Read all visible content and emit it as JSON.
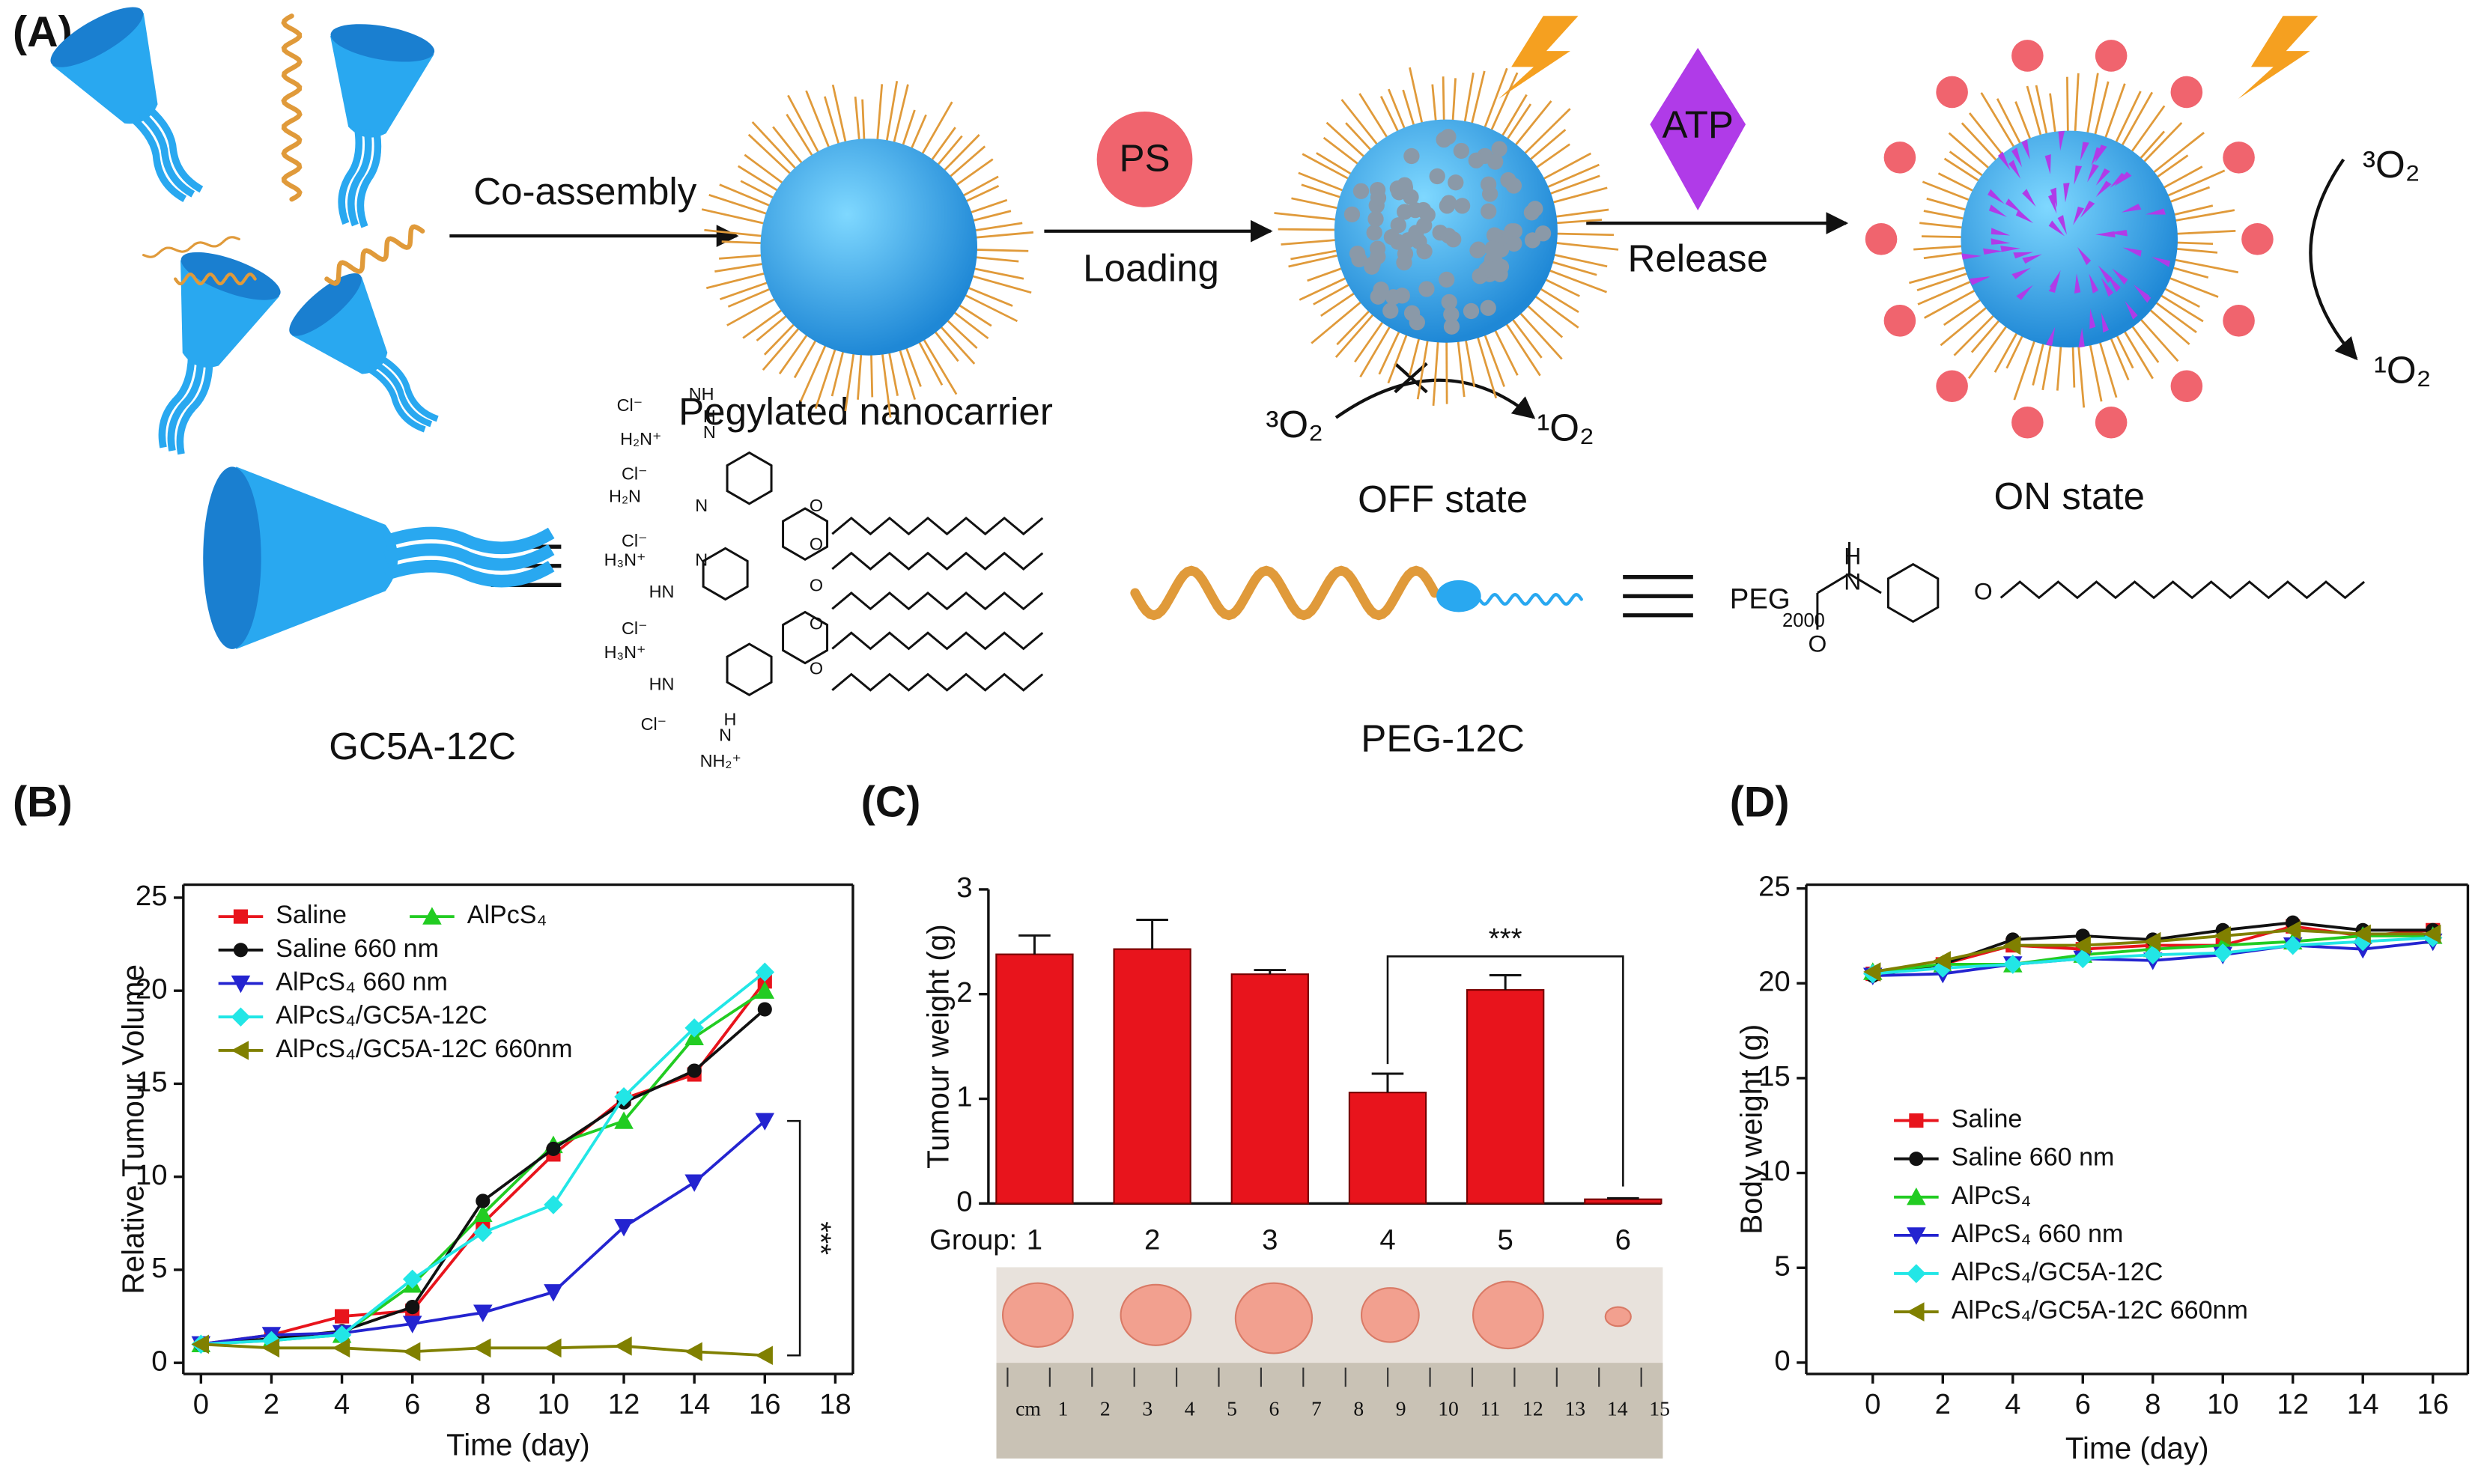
{
  "panel_labels": [
    "(A)",
    "(B)",
    "(C)",
    "(D)"
  ],
  "diagram": {
    "co_assembly": "Co-assembly",
    "ps": "PS",
    "loading": "Loading",
    "atp": "ATP",
    "release": "Release",
    "nanocarrier": "Pegylated nanocarrier",
    "off_triplet": "³O₂",
    "off_singlet": "¹O₂",
    "off_state": "OFF state",
    "on_triplet": "³O₂",
    "on_singlet": "¹O₂",
    "on_state": "ON state",
    "gc5a_label": "GC5A-12C",
    "peg_label": "PEG-12C",
    "gc5a_structure": [
      "Cl⁻",
      "NH",
      "H₂N⁺",
      "N",
      "H",
      "Cl⁻",
      "H₂N",
      "N",
      "Cl⁻",
      "H₃N⁺",
      "N",
      "HN",
      "Cl⁻",
      "H₃N⁺",
      "HN",
      "Cl⁻",
      "NH₂⁺",
      "N",
      "H",
      "O",
      "O",
      "O",
      "O",
      "O"
    ],
    "peg_structure": [
      "PEG",
      "2000",
      "H",
      "N",
      "O",
      "O"
    ]
  },
  "photo": {
    "ruler_labels": [
      "cm",
      "1",
      "2",
      "3",
      "4",
      "5",
      "6",
      "7",
      "8",
      "9",
      "10",
      "11",
      "12",
      "13",
      "14",
      "15"
    ]
  },
  "chart_data": [
    {
      "type": "line",
      "xlabel": "Time (day)",
      "ylabel": "Relative Tumour Volume",
      "x": [
        0,
        2,
        4,
        6,
        8,
        10,
        12,
        14,
        16
      ],
      "xlim": [
        -0.5,
        18.5
      ],
      "xticks": [
        0,
        2,
        4,
        6,
        8,
        10,
        12,
        14,
        16,
        18
      ],
      "ylim": [
        -0.6,
        25.7
      ],
      "yticks": [
        0,
        5,
        10,
        15,
        20,
        25
      ],
      "legend": "upper left",
      "annotation": "***",
      "series": [
        {
          "name": "Saline",
          "color": "#e8141c",
          "marker": "square",
          "values": [
            1,
            1.5,
            2.5,
            2.8,
            7.5,
            11.2,
            14.2,
            15.5,
            20.5
          ]
        },
        {
          "name": "AlPcS₄",
          "color": "#22cc22",
          "marker": "triangle-up",
          "values": [
            1,
            1.2,
            1.5,
            4.2,
            8,
            11.7,
            13,
            17.5,
            20
          ]
        },
        {
          "name": "Saline 660 nm",
          "color": "#111111",
          "marker": "circle",
          "values": [
            1,
            1.3,
            1.7,
            3,
            8.7,
            11.5,
            14,
            15.7,
            19
          ]
        },
        {
          "name": "AlPcS₄ 660 nm",
          "color": "#2424d0",
          "marker": "triangle-down",
          "values": [
            1,
            1.5,
            1.6,
            2.1,
            2.7,
            3.8,
            7.3,
            9.7,
            13
          ]
        },
        {
          "name": "AlPcS₄/GC5A-12C",
          "color": "#22e6e6",
          "marker": "diamond",
          "values": [
            1,
            1.2,
            1.5,
            4.5,
            7,
            8.5,
            14.3,
            18,
            21
          ]
        },
        {
          "name": "AlPcS₄/GC5A-12C  660nm",
          "color": "#808000",
          "marker": "triangle-left",
          "values": [
            1,
            0.8,
            0.8,
            0.6,
            0.8,
            0.8,
            0.9,
            0.6,
            0.4
          ]
        }
      ]
    },
    {
      "type": "bar",
      "xlabel": "Group:",
      "ylabel": "Tumour weight (g)",
      "categories": [
        "1",
        "2",
        "3",
        "4",
        "5",
        "6"
      ],
      "values": [
        2.38,
        2.43,
        2.19,
        1.06,
        2.04,
        0.04
      ],
      "errors": [
        0.18,
        0.28,
        0.04,
        0.18,
        0.14,
        0.01
      ],
      "color": "#e8141c",
      "ylim": [
        0,
        3
      ],
      "yticks": [
        0,
        1,
        2,
        3
      ],
      "annotation": "***"
    },
    {
      "type": "line",
      "xlabel": "Time (day)",
      "ylabel": "Body weight (g)",
      "x": [
        0,
        2,
        4,
        6,
        8,
        10,
        12,
        14,
        16
      ],
      "xlim": [
        -1.9,
        17
      ],
      "xticks": [
        0,
        2,
        4,
        6,
        8,
        10,
        12,
        14,
        16
      ],
      "ylim": [
        -0.6,
        25.2
      ],
      "yticks": [
        0,
        5,
        10,
        15,
        20,
        25
      ],
      "legend": "lower left",
      "series": [
        {
          "name": "Saline",
          "color": "#e8141c",
          "marker": "square",
          "values": [
            20.5,
            21,
            22,
            21.8,
            22,
            22,
            23,
            22.5,
            22.8
          ]
        },
        {
          "name": "Saline 660 nm",
          "color": "#111111",
          "marker": "circle",
          "values": [
            20.4,
            21,
            22.3,
            22.5,
            22.3,
            22.8,
            23.2,
            22.8,
            22.8
          ]
        },
        {
          "name": "AlPcS₄",
          "color": "#22cc22",
          "marker": "triangle-up",
          "values": [
            20.6,
            21,
            21,
            21.5,
            21.8,
            22,
            22.2,
            22.5,
            22.5
          ]
        },
        {
          "name": "AlPcS₄ 660 nm",
          "color": "#2424d0",
          "marker": "triangle-down",
          "values": [
            20.4,
            20.5,
            21,
            21.3,
            21.2,
            21.5,
            22,
            21.8,
            22.2
          ]
        },
        {
          "name": "AlPcS₄/GC5A-12C",
          "color": "#22e6e6",
          "marker": "diamond",
          "values": [
            20.5,
            20.8,
            21,
            21.3,
            21.5,
            21.6,
            22,
            22.2,
            22.4
          ]
        },
        {
          "name": "AlPcS₄/GC5A-12C  660nm",
          "color": "#808000",
          "marker": "triangle-left",
          "values": [
            20.6,
            21.2,
            22,
            22,
            22.2,
            22.5,
            22.8,
            22.6,
            22.6
          ]
        }
      ]
    }
  ]
}
